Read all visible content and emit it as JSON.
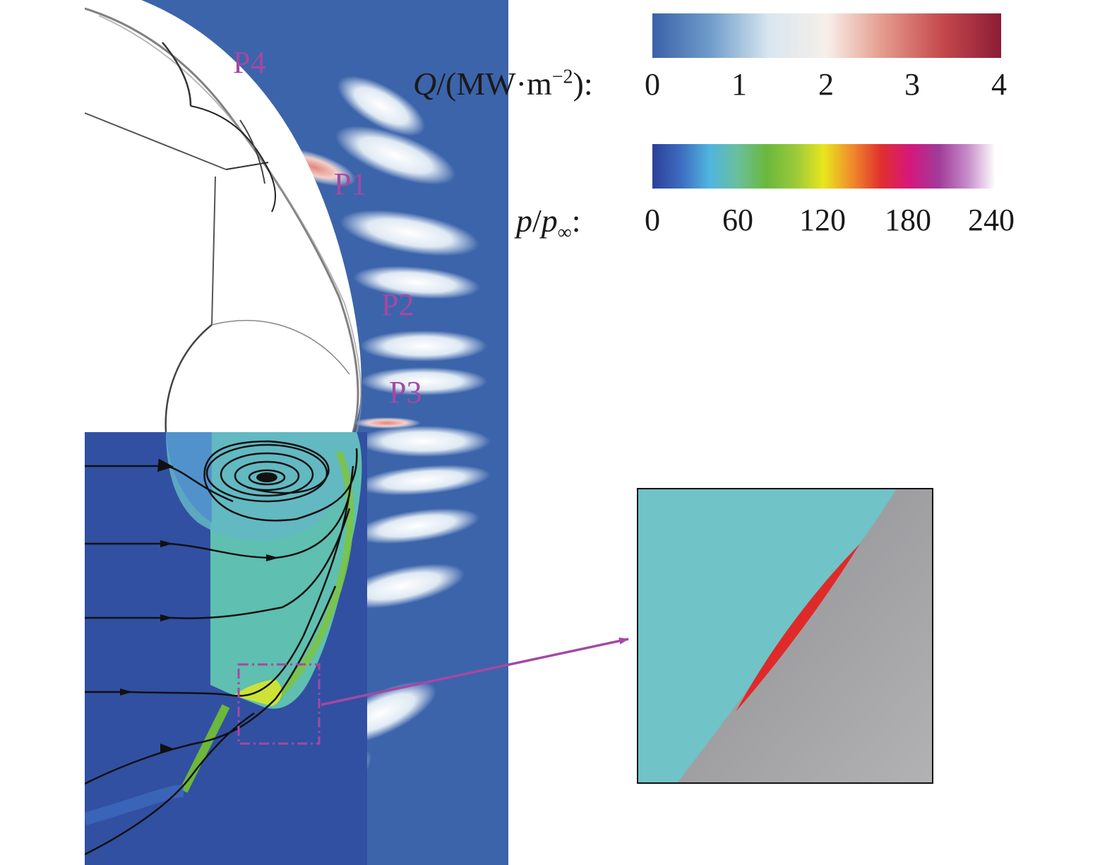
{
  "peak_labels": [
    "P4",
    "P1",
    "P2",
    "P3"
  ],
  "colorbar_q": {
    "label_var": "Q",
    "label_rest": "/(MW·m",
    "label_sup": "−2",
    "label_end": "):",
    "ticks": [
      "0",
      "1",
      "2",
      "3",
      "4"
    ],
    "colors": [
      "#3a62a8",
      "#6f9ccb",
      "#d8e6f0",
      "#f7efe9",
      "#e3988a",
      "#c4484c",
      "#8c1c36"
    ]
  },
  "colorbar_p": {
    "label_p": "p",
    "label_slash": "/",
    "label_p2": "p",
    "label_sub": "∞",
    "label_end": ":",
    "ticks": [
      "0",
      "60",
      "120",
      "180",
      "240"
    ],
    "colors": [
      "#2c3f97",
      "#3d6cc0",
      "#50b5e0",
      "#6abf9a",
      "#6bb83c",
      "#9bc93a",
      "#e8e61d",
      "#f08a2b",
      "#e02f2f",
      "#d6177c",
      "#a03a98",
      "#c58ac8",
      "#ffffff"
    ]
  },
  "colors": {
    "heat_base": "#3c64ab",
    "free_stream": "#3150a2",
    "post_shock": "#5fbfb0",
    "highlight_box": "#a349a4",
    "inset_fluid": "#70c3c6",
    "inset_wall": "#a3a3a6",
    "inset_hot": "#e02a2a"
  }
}
